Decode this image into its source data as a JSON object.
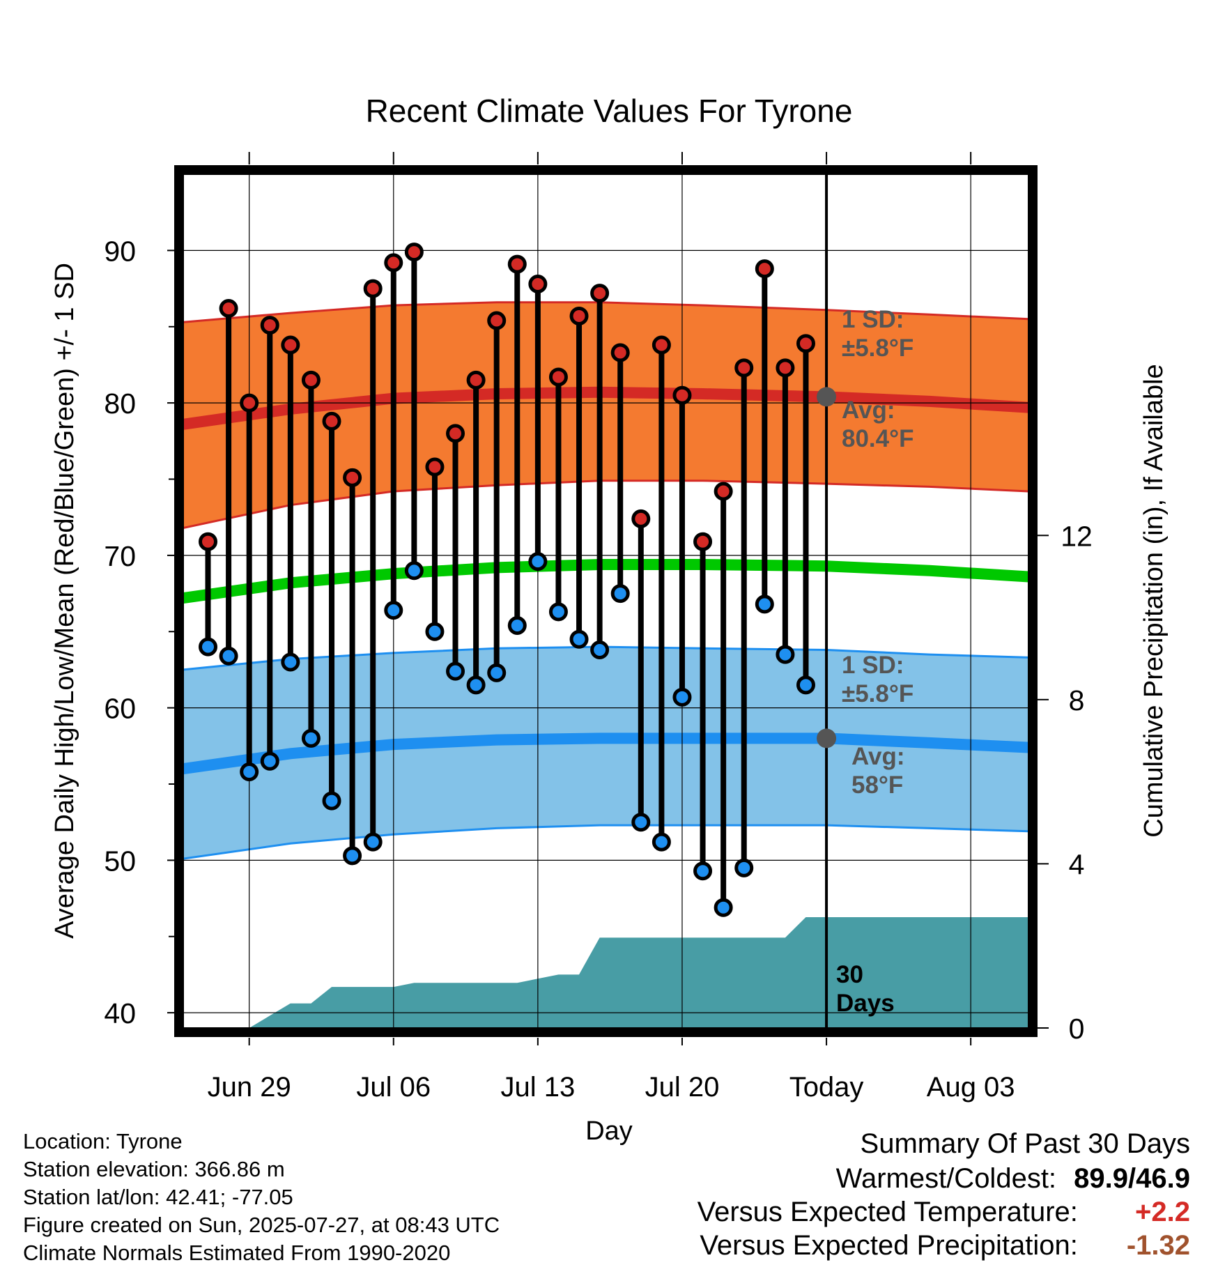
{
  "chart_data": {
    "type": "line",
    "title": "Recent Climate Values For Tyrone",
    "xlabel": "Day",
    "ylabel": "Average Daily High/Low/Mean (Red/Blue/Green) +/- 1 SD",
    "y2label": "Cumulative Precipitation (in), If Available",
    "x_tick_labels": [
      "Jun 29",
      "Jul 06",
      "Jul 13",
      "Jul 20",
      "Today",
      "Aug 03"
    ],
    "x_tick_dates": [
      "2025-06-29",
      "2025-07-06",
      "2025-07-13",
      "2025-07-20",
      "2025-07-27",
      "2025-08-03"
    ],
    "x_range": [
      "2025-06-25.8",
      "2025-08-05.8"
    ],
    "today": "2025-07-27",
    "ylim": [
      39,
      95
    ],
    "y_ticks": [
      40,
      50,
      60,
      70,
      80,
      90
    ],
    "y2lim": [
      0,
      20.8
    ],
    "y2_ticks": [
      0,
      4,
      8,
      12
    ],
    "grid": true,
    "colors": {
      "high_band": "#f47a30",
      "high_line": "#d42a25",
      "low_band": "#83c2e8",
      "low_line": "#1e8ff0",
      "mean_line": "#00c800",
      "precip": "#489da5",
      "marker_high": "#d42a25",
      "marker_low": "#1e8ff0",
      "avg_dot": "#555555",
      "annotation": "#555555"
    },
    "dates": [
      "2025-06-27",
      "2025-06-28",
      "2025-06-29",
      "2025-06-30",
      "2025-07-01",
      "2025-07-02",
      "2025-07-03",
      "2025-07-04",
      "2025-07-05",
      "2025-07-06",
      "2025-07-07",
      "2025-07-08",
      "2025-07-09",
      "2025-07-10",
      "2025-07-11",
      "2025-07-12",
      "2025-07-13",
      "2025-07-14",
      "2025-07-15",
      "2025-07-16",
      "2025-07-17",
      "2025-07-18",
      "2025-07-19",
      "2025-07-20",
      "2025-07-21",
      "2025-07-22",
      "2025-07-23",
      "2025-07-24",
      "2025-07-25",
      "2025-07-26"
    ],
    "series": [
      {
        "name": "High",
        "values": [
          70.9,
          86.2,
          80.0,
          85.1,
          83.8,
          81.5,
          78.8,
          75.1,
          87.5,
          89.2,
          89.9,
          75.8,
          78.0,
          81.5,
          85.4,
          89.1,
          87.8,
          81.7,
          85.7,
          87.2,
          83.3,
          72.4,
          83.8,
          80.5,
          70.9,
          74.2,
          82.3,
          88.8,
          82.3,
          83.9
        ]
      },
      {
        "name": "Low",
        "values": [
          64.0,
          63.4,
          55.8,
          56.5,
          63.0,
          58.0,
          53.9,
          50.3,
          51.2,
          66.4,
          69.0,
          65.0,
          62.4,
          61.5,
          62.3,
          65.4,
          69.6,
          66.3,
          64.5,
          63.8,
          67.5,
          52.5,
          51.2,
          60.7,
          49.3,
          46.9,
          49.5,
          66.8,
          63.5,
          61.5
        ]
      }
    ],
    "normals": {
      "dates": [
        "2025-06-25.8",
        "2025-07-01",
        "2025-07-06",
        "2025-07-11",
        "2025-07-16",
        "2025-07-21",
        "2025-07-27",
        "2025-08-01",
        "2025-08-05.8"
      ],
      "avg_high": [
        78.6,
        79.6,
        80.3,
        80.6,
        80.7,
        80.6,
        80.4,
        80.1,
        79.7
      ],
      "high_upper": [
        85.3,
        85.9,
        86.4,
        86.6,
        86.6,
        86.4,
        86.1,
        85.8,
        85.5
      ],
      "high_lower": [
        71.8,
        73.3,
        74.2,
        74.6,
        74.9,
        74.9,
        74.7,
        74.5,
        74.2
      ],
      "avg_low": [
        56.0,
        57.0,
        57.6,
        57.9,
        58.0,
        58.0,
        58.0,
        57.7,
        57.4
      ],
      "low_upper": [
        62.5,
        63.2,
        63.6,
        63.9,
        64.0,
        63.9,
        63.8,
        63.5,
        63.3
      ],
      "low_lower": [
        50.1,
        51.1,
        51.7,
        52.1,
        52.3,
        52.3,
        52.3,
        52.1,
        51.9
      ],
      "mean": [
        67.2,
        68.2,
        68.8,
        69.2,
        69.4,
        69.4,
        69.3,
        69.0,
        68.6
      ]
    },
    "precip": {
      "dates": [
        "2025-06-29",
        "2025-06-30",
        "2025-07-01",
        "2025-07-02",
        "2025-07-03",
        "2025-07-04",
        "2025-07-05",
        "2025-07-06",
        "2025-07-07",
        "2025-07-08",
        "2025-07-09",
        "2025-07-10",
        "2025-07-11",
        "2025-07-12",
        "2025-07-13",
        "2025-07-14",
        "2025-07-15",
        "2025-07-16",
        "2025-07-17",
        "2025-07-18",
        "2025-07-19",
        "2025-07-20",
        "2025-07-21",
        "2025-07-22",
        "2025-07-23",
        "2025-07-24",
        "2025-07-25",
        "2025-07-26",
        "2025-08-05.8"
      ],
      "values": [
        0.0,
        0.3,
        0.6,
        0.6,
        1.0,
        1.0,
        1.0,
        1.0,
        1.1,
        1.1,
        1.1,
        1.1,
        1.1,
        1.1,
        1.2,
        1.3,
        1.3,
        2.2,
        2.2,
        2.2,
        2.2,
        2.2,
        2.2,
        2.2,
        2.2,
        2.2,
        2.2,
        2.7,
        2.7
      ]
    },
    "annotations": {
      "high_sd": [
        "1 SD:",
        "±5.8°F"
      ],
      "high_avg": [
        "Avg:",
        "80.4°F"
      ],
      "low_sd": [
        "1 SD:",
        "±5.8°F"
      ],
      "low_avg": [
        "Avg:",
        "58°F"
      ],
      "precip_days": [
        "30",
        "Days"
      ],
      "high_avg_value": 80.4,
      "low_avg_value": 58.0
    }
  },
  "info": {
    "location": "Location: Tyrone",
    "elevation": "Station elevation: 366.86 m",
    "latlon": "Station lat/lon: 42.41; -77.05",
    "created": "Figure created on Sun, 2025-07-27, at 08:43 UTC",
    "normals": "Climate Normals Estimated From 1990-2020"
  },
  "summary": {
    "heading": "Summary Of Past 30 Days",
    "warmest_label": "Warmest/Coldest:",
    "warmest_value": "89.9/46.9",
    "temp_label": "Versus Expected Temperature:",
    "temp_value": "+2.2",
    "temp_color": "#d42a25",
    "precip_label": "Versus Expected Precipitation:",
    "precip_value": "-1.32",
    "precip_color": "#a0522d"
  }
}
